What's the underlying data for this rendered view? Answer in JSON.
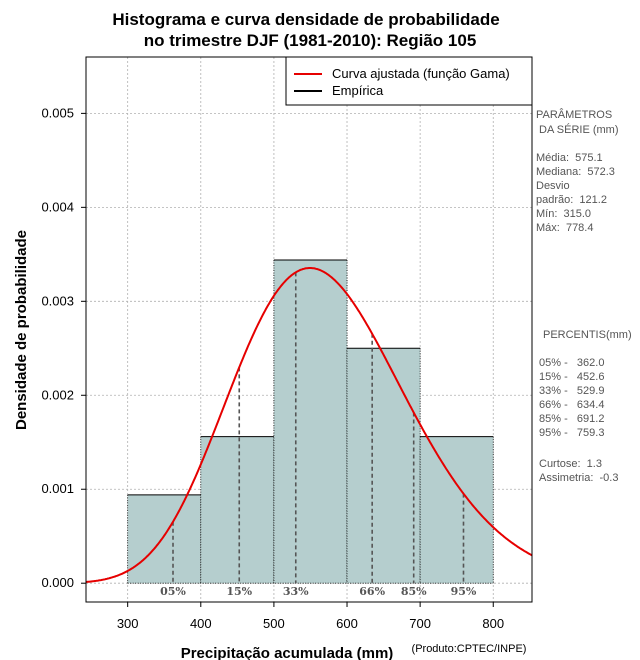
{
  "chart_data": {
    "type": "bar",
    "title": [
      "Histograma e curva densidade de probabilidade",
      "no trimestre DJF (1981-2010): Região 105"
    ],
    "xlabel": "Precipitação acumulada (mm)",
    "ylabel": "Densidade de probabilidade",
    "credit": "(Produto:CPTEC/INPE)",
    "xlim": [
      243,
      853
    ],
    "ylim": [
      -0.0002,
      0.0056
    ],
    "x_ticks": [
      300,
      400,
      500,
      600,
      700,
      800
    ],
    "x_tick_labels": [
      "300",
      "400",
      "500",
      "600",
      "700",
      "800"
    ],
    "y_ticks": [
      0.0,
      0.001,
      0.002,
      0.003,
      0.004,
      0.005
    ],
    "y_tick_labels": [
      "0.000",
      "0.001",
      "0.002",
      "0.003",
      "0.004",
      "0.005"
    ],
    "grid": true,
    "bins": [
      {
        "from": 300,
        "to": 400,
        "density": 0.00094
      },
      {
        "from": 400,
        "to": 500,
        "density": 0.00156
      },
      {
        "from": 500,
        "to": 600,
        "density": 0.00344
      },
      {
        "from": 600,
        "to": 700,
        "density": 0.0025
      },
      {
        "from": 700,
        "to": 800,
        "density": 0.00156
      }
    ],
    "gamma_fit": {
      "shape": 22.5,
      "scale": 25.55
    },
    "legend": {
      "position": "top-right",
      "entries": [
        {
          "label": "Curva ajustada (função Gama)",
          "color": "#e60000"
        },
        {
          "label": "Empírica",
          "color": "#000000"
        }
      ]
    },
    "percentile_markers": [
      {
        "label": "05%",
        "x": 362.0
      },
      {
        "label": "15%",
        "x": 452.6
      },
      {
        "label": "33%",
        "x": 529.9
      },
      {
        "label": "66%",
        "x": 634.4
      },
      {
        "label": "85%",
        "x": 691.2
      },
      {
        "label": "95%",
        "x": 759.3
      }
    ],
    "colors": {
      "bar_fill": "#b5cece",
      "curve": "#e60000",
      "grid": "#b0b0b0",
      "marker": "#555555"
    }
  },
  "side_panel": {
    "params_title": [
      "PARÂMETROS",
      " DA SÉRIE (mm)"
    ],
    "params": [
      "Média:  575.1",
      "Mediana:  572.3",
      "Desvio",
      "padrão:  121.2",
      "Mín:  315.0",
      "Máx:  778.4"
    ],
    "percentis_title": "PERCENTIS(mm)",
    "percentis": [
      "05% -   362.0",
      "15% -   452.6",
      "33% -   529.9",
      "66% -   634.4",
      "85% -   691.2",
      "95% -   759.3"
    ],
    "stats": [
      "Curtose:  1.3",
      "Assimetria:  -0.3"
    ]
  }
}
